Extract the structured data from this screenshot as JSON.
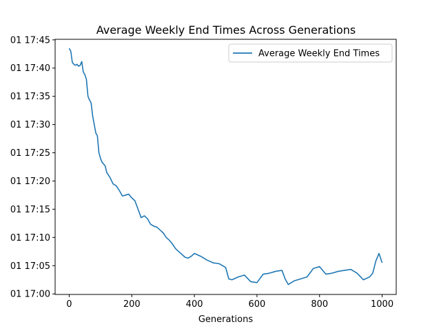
{
  "chart_data": {
    "type": "line",
    "title": "Average Weekly End Times Across Generations",
    "xlabel": "Generations",
    "ylabel": "",
    "xlim": [
      -45,
      1045
    ],
    "ylim": [
      "17:00:00",
      "17:45:00"
    ],
    "x_ticks": [
      0,
      200,
      400,
      600,
      800,
      1000
    ],
    "y_ticks": [
      {
        "value": "17:00:00",
        "label": "01 17:00"
      },
      {
        "value": "17:05:00",
        "label": "01 17:05"
      },
      {
        "value": "17:10:00",
        "label": "01 17:10"
      },
      {
        "value": "17:15:00",
        "label": "01 17:15"
      },
      {
        "value": "17:20:00",
        "label": "01 17:20"
      },
      {
        "value": "17:25:00",
        "label": "01 17:25"
      },
      {
        "value": "17:30:00",
        "label": "01 17:30"
      },
      {
        "value": "17:35:00",
        "label": "01 17:35"
      },
      {
        "value": "17:40:00",
        "label": "01 17:40"
      },
      {
        "value": "17:45:00",
        "label": "01 17:45"
      }
    ],
    "grid": false,
    "legend": {
      "placement": "top-right"
    },
    "series": [
      {
        "name": "Average Weekly End Times",
        "color": "#1f77b4",
        "x": [
          0,
          5,
          10,
          15,
          20,
          25,
          30,
          35,
          40,
          45,
          50,
          55,
          60,
          65,
          70,
          75,
          80,
          85,
          90,
          95,
          100,
          105,
          110,
          115,
          120,
          130,
          140,
          150,
          160,
          170,
          180,
          190,
          200,
          210,
          220,
          230,
          240,
          250,
          260,
          270,
          280,
          290,
          300,
          310,
          320,
          330,
          340,
          350,
          360,
          370,
          380,
          390,
          400,
          420,
          440,
          460,
          480,
          500,
          510,
          520,
          540,
          560,
          580,
          600,
          620,
          640,
          660,
          680,
          690,
          700,
          720,
          740,
          760,
          780,
          800,
          820,
          840,
          860,
          880,
          900,
          920,
          940,
          960,
          970,
          980,
          990,
          1000
        ],
        "y": [
          "17:43:30",
          "17:43:00",
          "17:41:00",
          "17:40:40",
          "17:40:30",
          "17:40:40",
          "17:40:20",
          "17:40:30",
          "17:41:10",
          "17:39:20",
          "17:38:50",
          "17:38:00",
          "17:35:00",
          "17:34:20",
          "17:33:50",
          "17:31:30",
          "17:30:00",
          "17:28:30",
          "17:28:00",
          "17:25:00",
          "17:24:00",
          "17:23:20",
          "17:23:00",
          "17:22:40",
          "17:21:30",
          "17:20:40",
          "17:19:30",
          "17:19:10",
          "17:18:20",
          "17:17:20",
          "17:17:30",
          "17:17:40",
          "17:17:00",
          "17:16:30",
          "17:15:00",
          "17:13:30",
          "17:13:50",
          "17:13:20",
          "17:12:20",
          "17:12:00",
          "17:11:50",
          "17:11:20",
          "17:10:50",
          "17:10:00",
          "17:09:30",
          "17:08:50",
          "17:08:00",
          "17:07:30",
          "17:07:00",
          "17:06:30",
          "17:06:20",
          "17:06:40",
          "17:07:10",
          "17:06:40",
          "17:06:00",
          "17:05:30",
          "17:05:20",
          "17:04:40",
          "17:02:40",
          "17:02:30",
          "17:03:00",
          "17:03:20",
          "17:02:10",
          "17:02:00",
          "17:03:30",
          "17:03:40",
          "17:04:00",
          "17:04:10",
          "17:02:40",
          "17:01:40",
          "17:02:20",
          "17:02:40",
          "17:03:00",
          "17:04:30",
          "17:04:50",
          "17:03:30",
          "17:03:40",
          "17:04:00",
          "17:04:10",
          "17:04:20",
          "17:03:40",
          "17:02:30",
          "17:03:00",
          "17:03:40",
          "17:05:50",
          "17:07:10",
          "17:05:30"
        ]
      }
    ]
  }
}
